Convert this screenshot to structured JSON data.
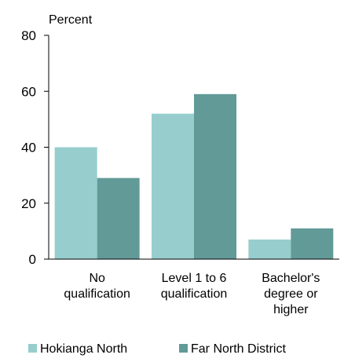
{
  "chart_data": {
    "type": "bar",
    "title": "",
    "ylabel": "Percent",
    "xlabel": "",
    "ylim": [
      0,
      80
    ],
    "yticks": [
      0,
      20,
      40,
      60,
      80
    ],
    "grid": false,
    "legend_position": "bottom",
    "categories": [
      [
        "No",
        "qualification"
      ],
      [
        "Level 1 to 6",
        "qualification"
      ],
      [
        "Bachelor's",
        "degree or",
        "higher"
      ]
    ],
    "series": [
      {
        "name": "Hokianga North",
        "color": "#97cdcd",
        "values": [
          40,
          52,
          7
        ]
      },
      {
        "name": "Far North District",
        "color": "#629a98",
        "values": [
          29,
          59,
          11
        ]
      }
    ]
  }
}
